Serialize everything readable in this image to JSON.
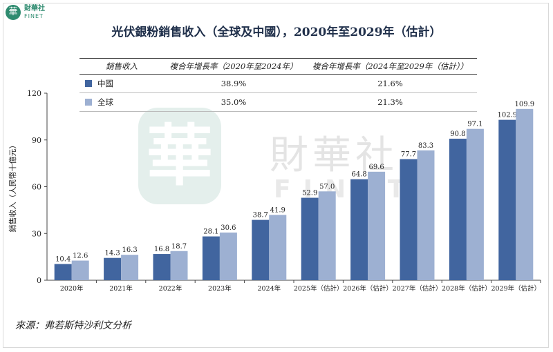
{
  "logo": {
    "mark": "華",
    "cn": "財華社",
    "en": "FINET"
  },
  "watermark": {
    "seal": "華",
    "cn": "財華社",
    "en": "FINET"
  },
  "chart_data": {
    "type": "bar",
    "title": "光伏銀粉銷售收入（全球及中國），2020年至2029年（估計）",
    "ylabel": "銷售收入（人民幣十億元）",
    "xlabel": "",
    "ylim": [
      0,
      120
    ],
    "yticks": [
      "0",
      "30",
      "60",
      "90",
      "120"
    ],
    "categories": [
      "2020年",
      "2021年",
      "2022年",
      "2023年",
      "2024年",
      "2025年（估計）",
      "2026年（估計）",
      "2027年（估計）",
      "2028年（估計）",
      "2029年（估計）"
    ],
    "series": [
      {
        "name": "中國",
        "color": "#41659f",
        "values": [
          10.4,
          14.3,
          16.8,
          28.1,
          38.7,
          52.9,
          64.8,
          77.7,
          90.8,
          102.9
        ],
        "labels": [
          "10.4",
          "14.3",
          "16.8",
          "28.1",
          "38.7",
          "52.9",
          "64.8",
          "77.7",
          "90.8",
          "102.9"
        ]
      },
      {
        "name": "全球",
        "color": "#9db0d2",
        "values": [
          12.6,
          16.3,
          18.7,
          30.6,
          41.9,
          57.0,
          69.6,
          83.3,
          97.1,
          109.9
        ],
        "labels": [
          "12.6",
          "16.3",
          "18.7",
          "30.6",
          "41.9",
          "57.0",
          "69.6",
          "83.3",
          "97.1",
          "109.9"
        ]
      }
    ],
    "grid": false,
    "legend_table": {
      "headers": [
        "銷售收入",
        "複合年增長率（2020年至2024年）",
        "複合年增長率（2024年至2029年（估計））"
      ],
      "rows": [
        {
          "name": "中國",
          "cagr1": "38.9%",
          "cagr2": "21.6%"
        },
        {
          "name": "全球",
          "cagr1": "35.0%",
          "cagr2": "21.3%"
        }
      ]
    }
  },
  "source": "來源：弗若斯特沙利文分析"
}
